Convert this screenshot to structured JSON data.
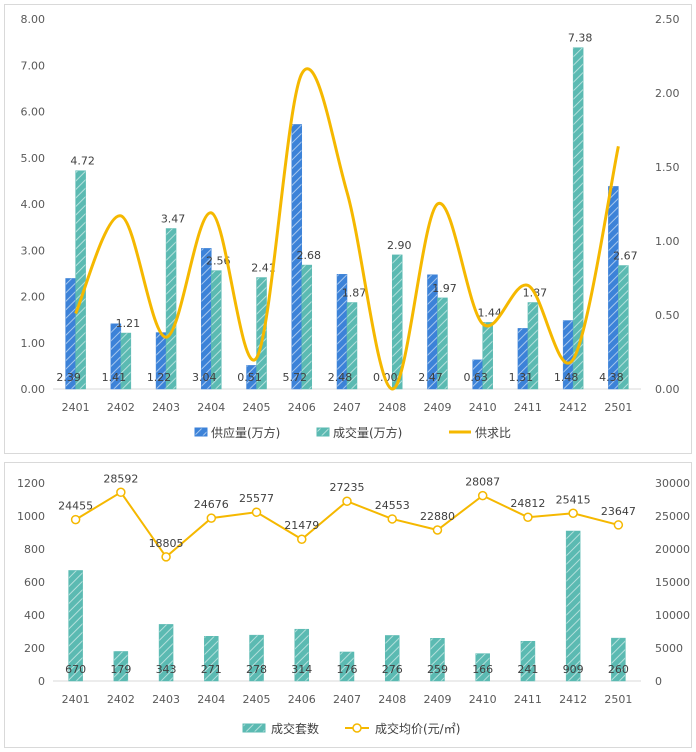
{
  "chart_data": [
    {
      "type": "bar+line",
      "title": "",
      "categories": [
        "2401",
        "2402",
        "2403",
        "2404",
        "2405",
        "2406",
        "2407",
        "2408",
        "2409",
        "2410",
        "2411",
        "2412",
        "2501"
      ],
      "series": [
        {
          "name": "供应量(万方)",
          "type": "bar",
          "axis": "left",
          "color": "#3c82d8",
          "values": [
            2.39,
            1.41,
            1.22,
            3.04,
            0.51,
            5.72,
            2.48,
            0.0,
            2.47,
            0.63,
            1.31,
            1.48,
            4.38
          ],
          "labels": [
            "2.39",
            "1.41",
            "1.22",
            "3.04",
            "0.51",
            "5.72",
            "2.48",
            "0.00",
            "2.47",
            "0.63",
            "1.31",
            "1.48",
            "4.38"
          ]
        },
        {
          "name": "成交量(万方)",
          "type": "bar",
          "axis": "left",
          "color": "#5bbab2",
          "values": [
            4.72,
            1.21,
            3.47,
            2.56,
            2.41,
            2.68,
            1.87,
            2.9,
            1.97,
            1.44,
            1.87,
            7.38,
            2.67
          ],
          "labels": [
            "4.72",
            "1.21",
            "3.47",
            "2.56",
            "2.41",
            "2.68",
            "1.87",
            "2.90",
            "1.97",
            "1.44",
            "1.87",
            "7.38",
            "2.67"
          ]
        },
        {
          "name": "供求比",
          "type": "line",
          "axis": "right",
          "color": "#f5b800",
          "values": [
            0.51,
            1.17,
            0.35,
            1.19,
            0.21,
            2.13,
            1.33,
            0.0,
            1.25,
            0.44,
            0.7,
            0.2,
            1.64
          ]
        }
      ],
      "y_left": {
        "min": 0,
        "max": 8,
        "ticks": [
          "0.00",
          "1.00",
          "2.00",
          "3.00",
          "4.00",
          "5.00",
          "6.00",
          "7.00",
          "8.00"
        ]
      },
      "y_right": {
        "min": 0,
        "max": 2.5,
        "ticks": [
          "0.00",
          "0.50",
          "1.00",
          "1.50",
          "2.00",
          "2.50"
        ]
      },
      "legend": "bottom"
    },
    {
      "type": "bar+line",
      "title": "",
      "categories": [
        "2401",
        "2402",
        "2403",
        "2404",
        "2405",
        "2406",
        "2407",
        "2408",
        "2409",
        "2410",
        "2411",
        "2412",
        "2501"
      ],
      "series": [
        {
          "name": "成交套数",
          "type": "bar",
          "axis": "left",
          "color": "#5bbab2",
          "values": [
            670,
            179,
            343,
            271,
            278,
            314,
            176,
            276,
            259,
            166,
            241,
            909,
            260
          ],
          "labels": [
            "670",
            "179",
            "343",
            "271",
            "278",
            "314",
            "176",
            "276",
            "259",
            "166",
            "241",
            "909",
            "260"
          ]
        },
        {
          "name": "成交均价(元/㎡)",
          "type": "line",
          "axis": "right",
          "color": "#f5b800",
          "values": [
            24455,
            28592,
            18805,
            24676,
            25577,
            21479,
            27235,
            24553,
            22880,
            28087,
            24812,
            25415,
            23647
          ],
          "labels": [
            "24455",
            "28592",
            "18805",
            "24676",
            "25577",
            "21479",
            "27235",
            "24553",
            "22880",
            "28087",
            "24812",
            "25415",
            "23647"
          ]
        }
      ],
      "y_left": {
        "min": 0,
        "max": 1200,
        "ticks": [
          "0",
          "200",
          "400",
          "600",
          "800",
          "1000",
          "1200"
        ]
      },
      "y_right": {
        "min": 0,
        "max": 30000,
        "ticks": [
          "0",
          "5000",
          "10000",
          "15000",
          "20000",
          "25000",
          "30000"
        ]
      },
      "legend": "bottom"
    }
  ]
}
